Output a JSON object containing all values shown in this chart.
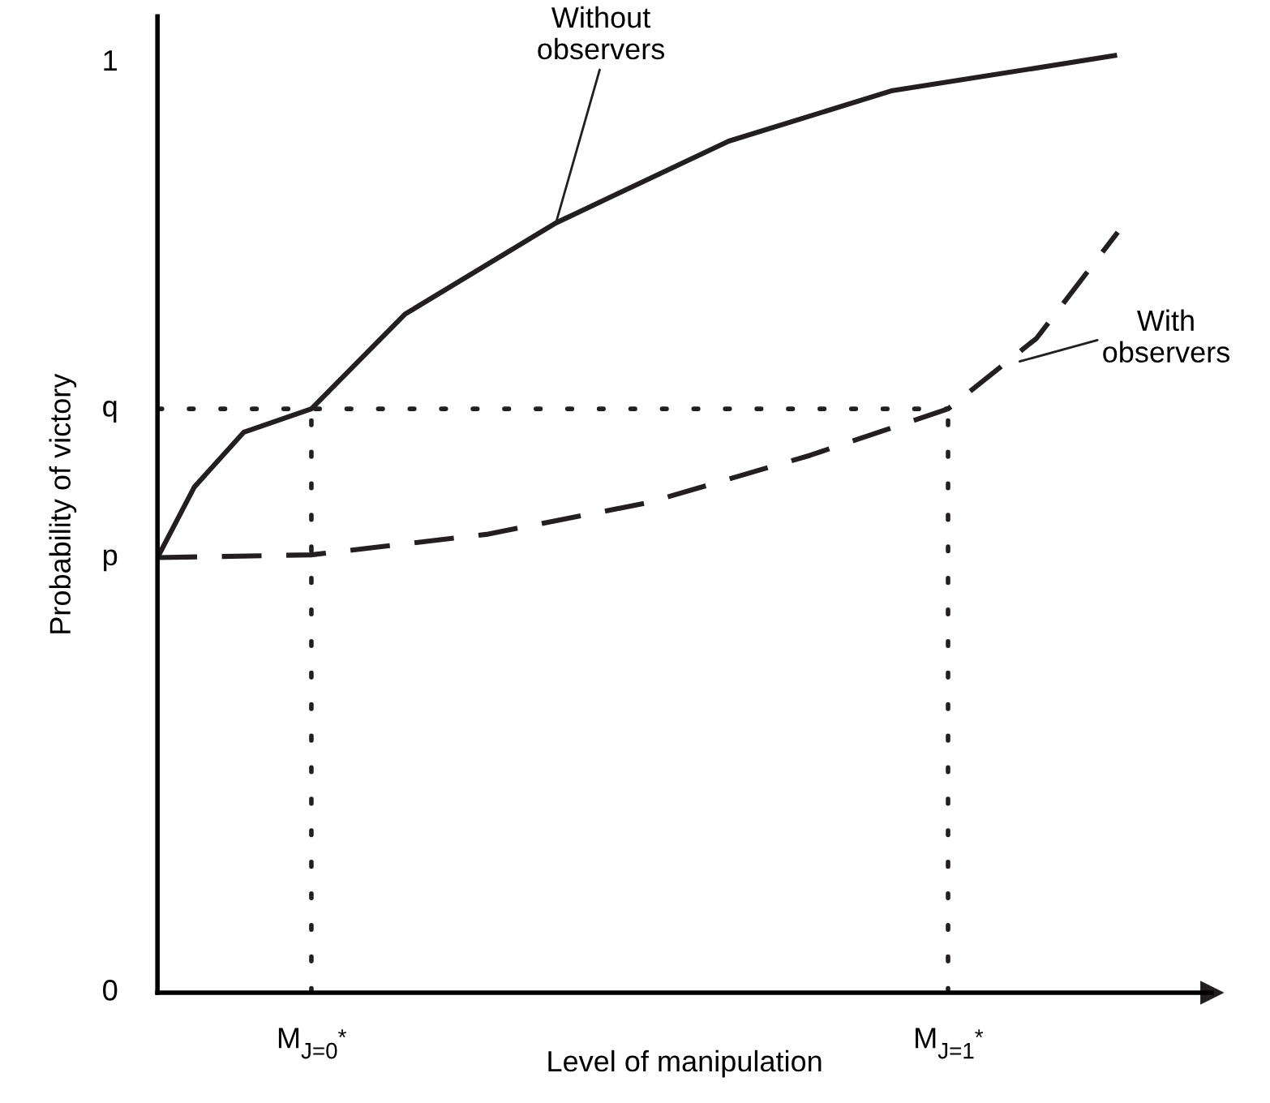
{
  "chart_data": {
    "type": "line",
    "xlabel": "Level of manipulation",
    "ylabel": "Probability of victory",
    "x": [
      0,
      0.035,
      0.082,
      0.146,
      0.235,
      0.378,
      0.542,
      0.696,
      0.908
    ],
    "series": [
      {
        "color": "#231f20",
        "line_style": "solid",
        "values": [
          0.468,
          0.544,
          0.603,
          0.628,
          0.73,
          0.828,
          0.916,
          0.97,
          1.008
        ]
      },
      {
        "color": "#231f20",
        "line_style": "dashed",
        "x": [
          0,
          0.146,
          0.312,
          0.465,
          0.619,
          0.75,
          0.834,
          0.911
        ],
        "values": [
          0.468,
          0.471,
          0.493,
          0.527,
          0.578,
          0.628,
          0.704,
          0.818
        ]
      },
      {
        "color": "#231f20",
        "line_style": "dotted",
        "x": [
          0,
          0.75
        ],
        "values": [
          0.628,
          0.628
        ]
      },
      {
        "color": "#231f20",
        "line_style": "dotted",
        "x": [
          0.146,
          0.146
        ],
        "values": [
          0,
          0.628
        ]
      },
      {
        "color": "#231f20",
        "line_style": "dotted",
        "x": [
          0.75,
          0.75
        ],
        "values": [
          0,
          0.628
        ]
      }
    ],
    "annotations": [
      {
        "text": "Without\nobservers",
        "x": 0.378,
        "y": 0.828
      },
      {
        "text": "With\nobservers",
        "x": 0.818,
        "y": 0.679
      }
    ],
    "xlim": [
      0,
      1
    ],
    "xticks": [
      {
        "value": 0.146,
        "label": "M$_{J=0}$$^{*}$"
      },
      {
        "value": 0.75,
        "label": "M$_{J=1}$$^{*}$"
      }
    ],
    "ylim": [
      0,
      1.05
    ],
    "yticks": [
      {
        "value": 0,
        "label": "0"
      },
      {
        "value": 0.468,
        "label": "p"
      },
      {
        "value": 0.628,
        "label": "q"
      },
      {
        "value": 1,
        "label": "1"
      }
    ],
    "grid": false,
    "legend": false,
    "marker": "none"
  }
}
